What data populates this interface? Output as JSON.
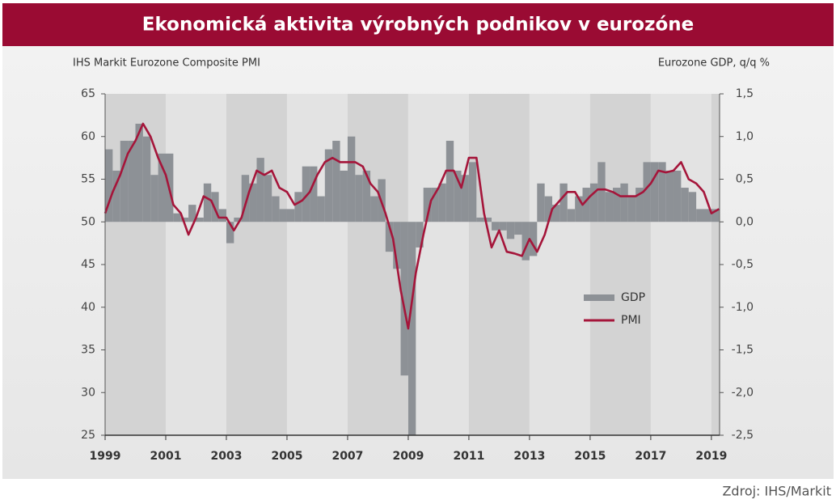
{
  "chart_data": {
    "type": "bar-line",
    "title": "Ekonomická aktivita výrobných podnikov v eurozóne",
    "y_label": "IHS Markit Eurozone Composite PMI",
    "y2_label": "Eurozone GDP, q/q %",
    "source": "Zdroj: IHS/Markit",
    "xlim": [
      1999,
      2019.27
    ],
    "xticks": [
      1999,
      2001,
      2003,
      2005,
      2007,
      2009,
      2011,
      2013,
      2015,
      2017,
      2019
    ],
    "ylim": [
      25,
      65
    ],
    "yticks": [
      25,
      30,
      35,
      40,
      45,
      50,
      55,
      60,
      65
    ],
    "y2lim": [
      -2.5,
      1.5
    ],
    "y2ticks": [
      {
        "value": -2.5,
        "label": "-2,5"
      },
      {
        "value": -2.0,
        "label": "-2,0"
      },
      {
        "value": -1.5,
        "label": "-1,5"
      },
      {
        "value": -1.0,
        "label": "-1,0"
      },
      {
        "value": -0.5,
        "label": "-0,5"
      },
      {
        "value": 0,
        "label": "0,0"
      },
      {
        "value": 0.5,
        "label": "0,5"
      },
      {
        "value": 1.0,
        "label": "1,0"
      },
      {
        "value": 1.5,
        "label": "1,5"
      }
    ],
    "series": [
      {
        "name": "GDP",
        "type": "bar",
        "axis": "y2",
        "color": "#8d9196",
        "x": [
          1999,
          1999.25,
          1999.5,
          1999.75,
          2000,
          2000.25,
          2000.5,
          2000.75,
          2001,
          2001.25,
          2001.5,
          2001.75,
          2002,
          2002.25,
          2002.5,
          2002.75,
          2003,
          2003.25,
          2003.5,
          2003.75,
          2004,
          2004.25,
          2004.5,
          2004.75,
          2005,
          2005.25,
          2005.5,
          2005.75,
          2006,
          2006.25,
          2006.5,
          2006.75,
          2007,
          2007.25,
          2007.5,
          2007.75,
          2008,
          2008.25,
          2008.5,
          2008.75,
          2009,
          2009.25,
          2009.5,
          2009.75,
          2010,
          2010.25,
          2010.5,
          2010.75,
          2011,
          2011.25,
          2011.5,
          2011.75,
          2012,
          2012.25,
          2012.5,
          2012.75,
          2013,
          2013.25,
          2013.5,
          2013.75,
          2014,
          2014.25,
          2014.5,
          2014.75,
          2015,
          2015.25,
          2015.5,
          2015.75,
          2016,
          2016.25,
          2016.5,
          2016.75,
          2017,
          2017.25,
          2017.5,
          2017.75,
          2018,
          2018.25,
          2018.5,
          2018.75,
          2019
        ],
        "values": [
          0.85,
          0.6,
          0.95,
          0.95,
          1.15,
          1.0,
          0.55,
          0.8,
          0.8,
          0.1,
          0.05,
          0.2,
          0.05,
          0.45,
          0.35,
          0.15,
          -0.25,
          0.05,
          0.55,
          0.45,
          0.75,
          0.55,
          0.3,
          0.15,
          0.15,
          0.35,
          0.65,
          0.65,
          0.3,
          0.85,
          0.95,
          0.6,
          1.0,
          0.55,
          0.6,
          0.3,
          0.5,
          -0.35,
          -0.55,
          -1.8,
          -2.5,
          -0.3,
          0.4,
          0.4,
          0.45,
          0.95,
          0.6,
          0.55,
          0.7,
          0.05,
          0.05,
          -0.1,
          -0.1,
          -0.2,
          -0.15,
          -0.45,
          -0.4,
          0.45,
          0.3,
          0.2,
          0.45,
          0.15,
          0.3,
          0.4,
          0.45,
          0.7,
          0.35,
          0.4,
          0.45,
          0.3,
          0.4,
          0.7,
          0.7,
          0.7,
          0.6,
          0.6,
          0.4,
          0.35,
          0.15,
          0.15,
          0.15
        ]
      },
      {
        "name": "PMI",
        "type": "line",
        "axis": "y",
        "color": "#a5153a",
        "x": [
          1999,
          1999.25,
          1999.5,
          1999.75,
          2000,
          2000.25,
          2000.5,
          2000.75,
          2001,
          2001.25,
          2001.5,
          2001.75,
          2002,
          2002.25,
          2002.5,
          2002.75,
          2003,
          2003.25,
          2003.5,
          2003.75,
          2004,
          2004.25,
          2004.5,
          2004.75,
          2005,
          2005.25,
          2005.5,
          2005.75,
          2006,
          2006.25,
          2006.5,
          2006.75,
          2007,
          2007.25,
          2007.5,
          2007.75,
          2008,
          2008.25,
          2008.5,
          2008.75,
          2009,
          2009.25,
          2009.5,
          2009.75,
          2010,
          2010.25,
          2010.5,
          2010.75,
          2011,
          2011.25,
          2011.5,
          2011.75,
          2012,
          2012.25,
          2012.5,
          2012.75,
          2013,
          2013.25,
          2013.5,
          2013.75,
          2014,
          2014.25,
          2014.5,
          2014.75,
          2015,
          2015.25,
          2015.5,
          2015.75,
          2016,
          2016.25,
          2016.5,
          2016.75,
          2017,
          2017.25,
          2017.5,
          2017.75,
          2018,
          2018.25,
          2018.5,
          2018.75,
          2019,
          2019.25
        ],
        "values": [
          51.0,
          53.5,
          55.5,
          58.0,
          59.5,
          61.5,
          60.0,
          57.5,
          55.5,
          52.0,
          51.0,
          48.5,
          50.5,
          53.0,
          52.5,
          50.5,
          50.5,
          49.0,
          50.5,
          53.5,
          56.0,
          55.5,
          56.0,
          54.0,
          53.5,
          52.0,
          52.5,
          53.5,
          55.5,
          57.0,
          57.5,
          57.0,
          57.0,
          57.0,
          56.5,
          54.5,
          53.5,
          51.0,
          48.0,
          42.0,
          37.5,
          44.0,
          48.5,
          52.5,
          54.0,
          56.0,
          56.0,
          54.0,
          57.5,
          57.5,
          51.0,
          47.0,
          49.0,
          46.5,
          46.3,
          46.0,
          48.0,
          46.5,
          48.5,
          51.5,
          52.5,
          53.5,
          53.5,
          52.0,
          53.0,
          53.8,
          53.8,
          53.5,
          53.0,
          53.0,
          53.0,
          53.5,
          54.5,
          56.0,
          55.8,
          56.0,
          57.0,
          55.0,
          54.5,
          53.5,
          51.0,
          51.5
        ]
      }
    ]
  }
}
